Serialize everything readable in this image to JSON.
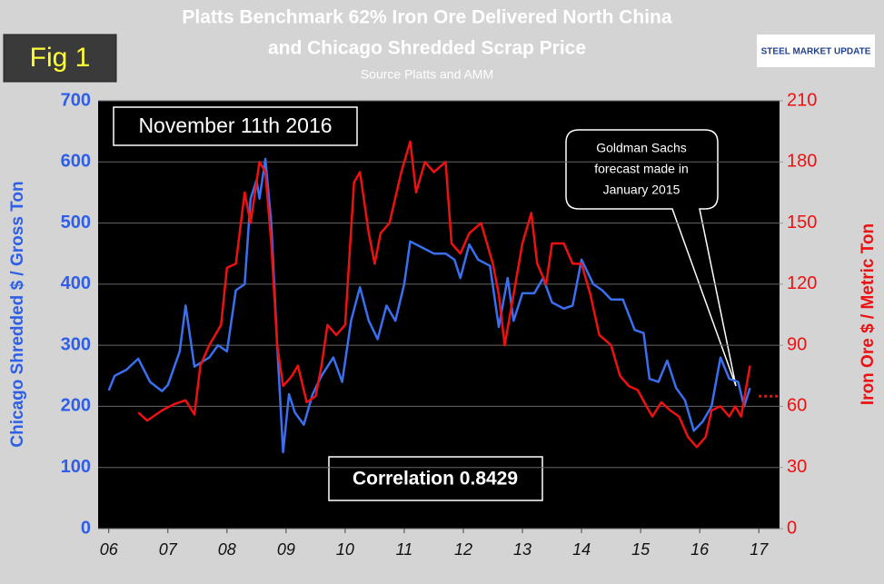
{
  "chart_data": {
    "type": "line",
    "title": [
      "Platts Benchmark 62% Iron Ore Delivered North China",
      "and Chicago Shredded Scrap Price"
    ],
    "subtitle": "Source Platts and AMM",
    "figure_label": "Fig 1",
    "logo": "STEEL MARKET UPDATE",
    "date_note": "November 11th  2016",
    "correlation_note": "Correlation 0.8429",
    "callout": [
      "Goldman Sachs",
      "forecast made in",
      "January 2015"
    ],
    "ylabel": "Chicago Shredded $ / Gross Ton",
    "y2label": "Iron Ore $ / Metric Ton",
    "xlim": [
      2005.82,
      2017.35
    ],
    "xticks": [
      {
        "value": 2006,
        "label": "06"
      },
      {
        "value": 2007,
        "label": "07"
      },
      {
        "value": 2008,
        "label": "08"
      },
      {
        "value": 2009,
        "label": "09"
      },
      {
        "value": 2010,
        "label": "10"
      },
      {
        "value": 2011,
        "label": "11"
      },
      {
        "value": 2012,
        "label": "12"
      },
      {
        "value": 2013,
        "label": "13"
      },
      {
        "value": 2014,
        "label": "14"
      },
      {
        "value": 2015,
        "label": "15"
      },
      {
        "value": 2016,
        "label": "16"
      },
      {
        "value": 2017,
        "label": "17"
      }
    ],
    "ylim": [
      0,
      700
    ],
    "yticks": [
      0,
      100,
      200,
      300,
      400,
      500,
      600,
      700
    ],
    "y2lim": [
      0,
      210
    ],
    "y2ticks": [
      0,
      30,
      60,
      90,
      120,
      150,
      180,
      210
    ],
    "grid": true,
    "series": [
      {
        "name": "Chicago Shredded",
        "color": "#3a6ff0",
        "axis": "y",
        "x": [
          2006.0,
          2006.1,
          2006.3,
          2006.5,
          2006.7,
          2006.9,
          2007.0,
          2007.2,
          2007.3,
          2007.45,
          2007.7,
          2007.85,
          2008.0,
          2008.15,
          2008.3,
          2008.4,
          2008.5,
          2008.55,
          2008.65,
          2008.75,
          2008.85,
          2008.95,
          2009.05,
          2009.15,
          2009.3,
          2009.45,
          2009.6,
          2009.8,
          2009.95,
          2010.1,
          2010.25,
          2010.4,
          2010.55,
          2010.7,
          2010.85,
          2011.0,
          2011.1,
          2011.3,
          2011.5,
          2011.7,
          2011.85,
          2011.95,
          2012.1,
          2012.25,
          2012.45,
          2012.6,
          2012.75,
          2012.85,
          2013.0,
          2013.2,
          2013.35,
          2013.5,
          2013.7,
          2013.85,
          2014.0,
          2014.2,
          2014.35,
          2014.5,
          2014.7,
          2014.9,
          2015.05,
          2015.15,
          2015.3,
          2015.45,
          2015.6,
          2015.75,
          2015.9,
          2016.05,
          2016.2,
          2016.35,
          2016.5,
          2016.65,
          2016.75,
          2016.85
        ],
        "values": [
          226,
          250,
          260,
          278,
          240,
          225,
          235,
          290,
          365,
          265,
          280,
          300,
          290,
          390,
          400,
          540,
          570,
          540,
          605,
          500,
          300,
          125,
          220,
          190,
          170,
          220,
          250,
          280,
          240,
          340,
          395,
          340,
          310,
          365,
          340,
          400,
          470,
          460,
          450,
          450,
          440,
          410,
          465,
          440,
          430,
          330,
          410,
          340,
          385,
          385,
          410,
          370,
          360,
          365,
          440,
          400,
          390,
          375,
          375,
          325,
          320,
          245,
          240,
          275,
          230,
          210,
          160,
          175,
          200,
          280,
          245,
          240,
          200,
          230
        ]
      },
      {
        "name": "Iron Ore",
        "color": "#ee1111",
        "axis": "y2",
        "x": [
          2006.5,
          2006.65,
          2006.9,
          2007.1,
          2007.3,
          2007.45,
          2007.55,
          2007.7,
          2007.9,
          2008.0,
          2008.15,
          2008.3,
          2008.4,
          2008.55,
          2008.65,
          2008.75,
          2008.85,
          2008.95,
          2009.1,
          2009.2,
          2009.35,
          2009.5,
          2009.6,
          2009.7,
          2009.85,
          2010.0,
          2010.15,
          2010.25,
          2010.4,
          2010.5,
          2010.6,
          2010.75,
          2010.95,
          2011.1,
          2011.2,
          2011.35,
          2011.5,
          2011.7,
          2011.8,
          2011.95,
          2012.1,
          2012.3,
          2012.5,
          2012.6,
          2012.7,
          2012.85,
          2013.0,
          2013.15,
          2013.25,
          2013.4,
          2013.5,
          2013.7,
          2013.85,
          2014.0,
          2014.15,
          2014.3,
          2014.5,
          2014.65,
          2014.8,
          2014.95,
          2015.1,
          2015.2,
          2015.35,
          2015.5,
          2015.65,
          2015.8,
          2015.95,
          2016.1,
          2016.2,
          2016.35,
          2016.5,
          2016.6,
          2016.7,
          2016.85
        ],
        "values": [
          57,
          53,
          58,
          61,
          63,
          56,
          80,
          90,
          100,
          128,
          130,
          165,
          150,
          180,
          175,
          140,
          90,
          70,
          75,
          80,
          62,
          65,
          80,
          100,
          95,
          100,
          170,
          175,
          145,
          130,
          145,
          150,
          175,
          190,
          165,
          180,
          175,
          180,
          140,
          135,
          145,
          150,
          130,
          115,
          90,
          115,
          140,
          155,
          130,
          120,
          140,
          140,
          130,
          130,
          115,
          95,
          90,
          75,
          70,
          68,
          60,
          55,
          62,
          58,
          55,
          45,
          40,
          45,
          58,
          60,
          55,
          60,
          55,
          80
        ]
      }
    ],
    "forecast": {
      "color": "#ee1111",
      "axis": "y2",
      "x": [
        2017.0,
        2017.35
      ],
      "values": [
        65,
        65
      ]
    }
  }
}
